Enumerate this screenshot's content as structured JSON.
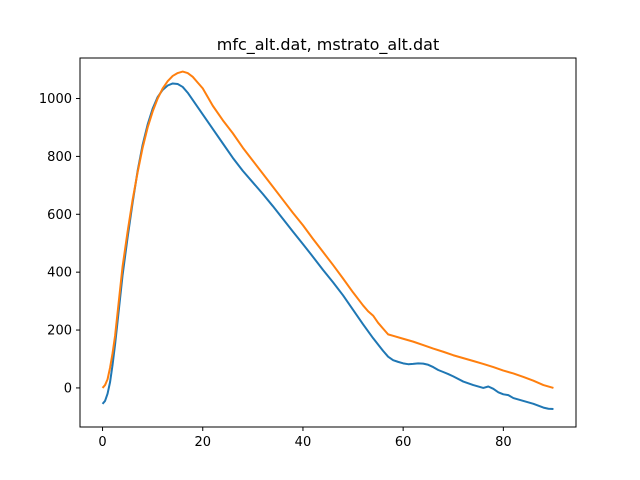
{
  "chart_data": {
    "type": "line",
    "title": "mfc_alt.dat, mstrato_alt.dat",
    "xlabel": "",
    "ylabel": "",
    "xlim": [
      -4.5,
      94.5
    ],
    "ylim": [
      -135,
      1140
    ],
    "x_ticks": [
      0,
      20,
      40,
      60,
      80
    ],
    "y_ticks": [
      0,
      200,
      400,
      600,
      800,
      1000
    ],
    "grid": false,
    "legend": "none",
    "series": [
      {
        "color": "#1f77b4",
        "x": [
          0,
          0.5,
          1,
          1.5,
          2,
          2.5,
          3,
          3.5,
          4,
          5,
          6,
          7,
          8,
          9,
          10,
          11,
          12,
          13,
          14,
          15,
          16,
          17,
          18,
          19,
          20,
          22,
          24,
          26,
          28,
          30,
          32,
          34,
          36,
          38,
          40,
          42,
          44,
          46,
          48,
          50,
          52,
          54,
          56,
          57,
          58,
          59,
          60,
          61,
          62,
          63,
          64,
          65,
          66,
          67,
          68,
          69,
          70,
          72,
          74,
          76,
          77,
          78,
          79,
          80,
          81,
          82,
          84,
          86,
          88,
          89,
          90
        ],
        "y": [
          -55,
          -45,
          -20,
          20,
          80,
          150,
          230,
          310,
          390,
          520,
          640,
          750,
          840,
          910,
          965,
          1005,
          1030,
          1045,
          1052,
          1050,
          1040,
          1020,
          995,
          970,
          945,
          895,
          845,
          795,
          750,
          710,
          670,
          628,
          584,
          540,
          497,
          453,
          408,
          365,
          320,
          270,
          220,
          172,
          128,
          108,
          96,
          90,
          85,
          82,
          83,
          85,
          84,
          80,
          72,
          62,
          55,
          48,
          40,
          22,
          10,
          0,
          5,
          -3,
          -15,
          -22,
          -25,
          -35,
          -45,
          -55,
          -68,
          -72,
          -73
        ]
      },
      {
        "color": "#ff7f0e",
        "x": [
          0,
          0.5,
          1,
          1.5,
          2,
          2.5,
          3,
          3.5,
          4,
          5,
          6,
          7,
          8,
          9,
          10,
          11,
          12,
          13,
          14,
          15,
          16,
          17,
          18,
          19,
          20,
          22,
          24,
          26,
          28,
          30,
          32,
          34,
          36,
          38,
          40,
          42,
          44,
          46,
          48,
          50,
          52,
          53,
          54,
          55,
          56,
          57,
          58,
          60,
          62,
          64,
          66,
          68,
          70,
          72,
          74,
          76,
          78,
          80,
          82,
          84,
          86,
          88,
          90
        ],
        "y": [
          0,
          10,
          30,
          70,
          120,
          180,
          260,
          340,
          420,
          540,
          650,
          745,
          830,
          900,
          955,
          1000,
          1035,
          1060,
          1078,
          1088,
          1093,
          1088,
          1075,
          1055,
          1035,
          975,
          925,
          880,
          830,
          785,
          740,
          695,
          650,
          605,
          562,
          515,
          470,
          425,
          378,
          330,
          285,
          265,
          250,
          225,
          205,
          185,
          180,
          170,
          160,
          148,
          136,
          125,
          113,
          103,
          93,
          83,
          72,
          60,
          50,
          38,
          25,
          10,
          0
        ]
      }
    ]
  }
}
